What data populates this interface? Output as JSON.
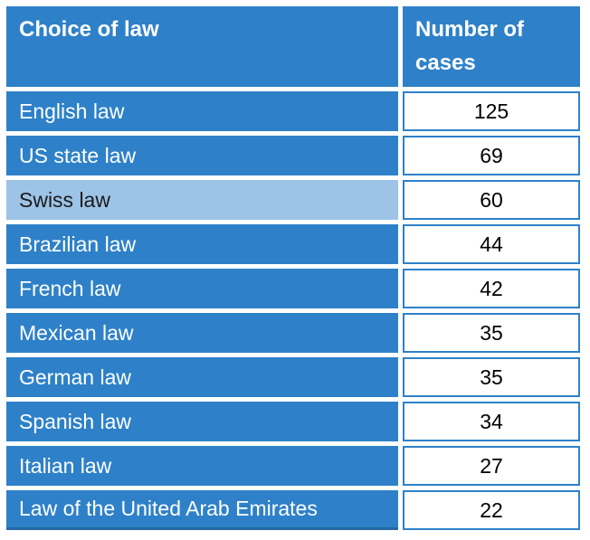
{
  "table": {
    "header": {
      "law_column": "Choice of law",
      "cases_column": "Number of cases"
    },
    "rows": [
      {
        "law": "English law",
        "cases": "125",
        "highlighted": false
      },
      {
        "law": "US state law",
        "cases": "69",
        "highlighted": false
      },
      {
        "law": "Swiss law",
        "cases": "60",
        "highlighted": true
      },
      {
        "law": "Brazilian law",
        "cases": "44",
        "highlighted": false
      },
      {
        "law": "French law",
        "cases": "42",
        "highlighted": false
      },
      {
        "law": "Mexican law",
        "cases": "35",
        "highlighted": false
      },
      {
        "law": "German law",
        "cases": "35",
        "highlighted": false
      },
      {
        "law": "Spanish law",
        "cases": "34",
        "highlighted": false
      },
      {
        "law": "Italian law",
        "cases": "27",
        "highlighted": false
      },
      {
        "law": "Law of the United Arab Emirates",
        "cases": "22",
        "highlighted": false
      }
    ]
  },
  "colors": {
    "primary_blue": "#2E81C8",
    "light_blue": "#9DC3E6",
    "header_text": "#FFFFFF",
    "row_text": "#FFFFFF",
    "highlight_text": "#1B1B1B",
    "num_text": "#000000",
    "cell_border": "#2E81C8",
    "bottom_border": "#2668A4",
    "background": "#FFFFFF"
  },
  "chart_data": {
    "type": "table",
    "title": "",
    "columns": [
      "Choice of law",
      "Number of cases"
    ],
    "categories": [
      "English law",
      "US state law",
      "Swiss law",
      "Brazilian law",
      "French law",
      "Mexican law",
      "German law",
      "Spanish law",
      "Italian law",
      "Law of the United Arab Emirates"
    ],
    "values": [
      125,
      69,
      60,
      44,
      42,
      35,
      35,
      34,
      27,
      22
    ],
    "highlighted_row": "Swiss law",
    "legend": false,
    "grid": false
  }
}
